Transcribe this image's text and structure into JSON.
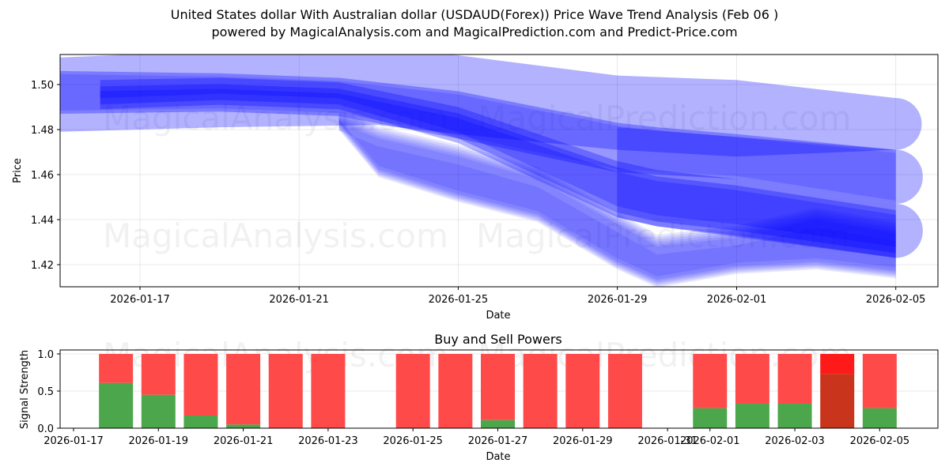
{
  "header": {
    "title": "United States dollar With Australian dollar (USDAUD(Forex)) Price Wave Trend Analysis (Feb 06 )",
    "subtitle": "powered by MagicalAnalysis.com and MagicalPrediction.com and Predict-Price.com"
  },
  "watermarks": [
    "MagicalAnalysis.com",
    "MagicalPrediction.com"
  ],
  "colors": {
    "band": "#0000ff",
    "buy": "#4ca64c",
    "sell": "#ff4a4a",
    "sell_strong": "#ff1a1a",
    "buy_dominant_dark": "#c8341c"
  },
  "chart_data": [
    {
      "type": "area",
      "title": "",
      "xlabel": "Date",
      "ylabel": "Price",
      "ylim": [
        1.41,
        1.513
      ],
      "xlim": [
        "2026-01-15",
        "2026-02-06"
      ],
      "grid": true,
      "yticks": [
        "1.42",
        "1.44",
        "1.46",
        "1.48",
        "1.50"
      ],
      "xticks": [
        "2026-01-17",
        "2026-01-21",
        "2026-01-25",
        "2026-01-29",
        "2026-02-01",
        "2026-02-05"
      ],
      "description": "Overlapping translucent blue wave bands showing price trend; narrow core band near 1.497 in mid-January, declining to approx. 1.42-1.44 by early February; wide projection bands with rounded ends at 1.483, 1.460, 1.436 on 2026-02-05",
      "series": [
        {
          "name": "wide-upper-band",
          "x": [
            "2026-01-15",
            "2026-01-19",
            "2026-01-23",
            "2026-01-25",
            "2026-01-29",
            "2026-02-01",
            "2026-02-05"
          ],
          "upper": [
            1.512,
            1.515,
            1.516,
            1.513,
            1.504,
            1.502,
            1.494
          ],
          "lower": [
            1.479,
            1.481,
            1.482,
            1.478,
            1.471,
            1.468,
            1.471
          ]
        },
        {
          "name": "mid-band",
          "x": [
            "2026-01-15",
            "2026-01-19",
            "2026-01-22",
            "2026-01-25",
            "2026-01-29",
            "2026-01-30",
            "2026-02-01",
            "2026-02-05"
          ],
          "upper": [
            1.506,
            1.505,
            1.503,
            1.497,
            1.483,
            1.481,
            1.478,
            1.471
          ],
          "lower": [
            1.487,
            1.488,
            1.486,
            1.476,
            1.461,
            1.46,
            1.458,
            1.447
          ]
        },
        {
          "name": "core-band",
          "x": [
            "2026-01-16",
            "2026-01-19",
            "2026-01-22",
            "2026-01-25",
            "2026-01-29",
            "2026-01-30",
            "2026-02-01",
            "2026-02-05"
          ],
          "upper": [
            1.502,
            1.503,
            1.501,
            1.49,
            1.466,
            1.462,
            1.458,
            1.447
          ],
          "lower": [
            1.489,
            1.491,
            1.489,
            1.474,
            1.441,
            1.437,
            1.433,
            1.423
          ]
        },
        {
          "name": "lower-wave-band",
          "x": [
            "2026-01-22",
            "2026-01-23",
            "2026-01-25",
            "2026-01-27",
            "2026-01-29",
            "2026-01-30",
            "2026-02-01",
            "2026-02-03",
            "2026-02-05"
          ],
          "upper": [
            1.483,
            1.476,
            1.468,
            1.458,
            1.438,
            1.428,
            1.432,
            1.44,
            1.434
          ],
          "lower": [
            1.482,
            1.461,
            1.45,
            1.441,
            1.42,
            1.412,
            1.418,
            1.42,
            1.416
          ]
        }
      ]
    },
    {
      "type": "bar",
      "title": "Buy and Sell Powers",
      "xlabel": "Date",
      "ylabel": "Signal Strength",
      "ylim": [
        0,
        1.05
      ],
      "yticks": [
        "0.0",
        "0.5",
        "1.0"
      ],
      "xticks": [
        "2026-01-17",
        "2026-01-19",
        "2026-01-21",
        "2026-01-23",
        "2026-01-25",
        "2026-01-27",
        "2026-01-29",
        "2026-01-31",
        "2026-02-01",
        "2026-02-03",
        "2026-02-05"
      ],
      "grid": true,
      "categories": [
        "2026-01-18",
        "2026-01-19",
        "2026-01-20",
        "2026-01-21",
        "2026-01-22",
        "2026-01-23",
        "2026-01-25",
        "2026-01-26",
        "2026-01-27",
        "2026-01-28",
        "2026-01-29",
        "2026-01-30",
        "2026-02-01",
        "2026-02-02",
        "2026-02-03",
        "2026-02-04",
        "2026-02-05"
      ],
      "series": [
        {
          "name": "Buy",
          "values": [
            0.61,
            0.45,
            0.17,
            0.05,
            0.0,
            0.0,
            0.0,
            0.0,
            0.11,
            0.0,
            0.0,
            0.0,
            0.27,
            0.33,
            0.33,
            0.73,
            0.27
          ]
        },
        {
          "name": "Sell",
          "values": [
            0.39,
            0.55,
            0.83,
            0.95,
            1.0,
            1.0,
            1.0,
            1.0,
            0.89,
            1.0,
            1.0,
            1.0,
            0.73,
            0.67,
            0.67,
            0.27,
            0.73
          ]
        }
      ],
      "highlight": {
        "date": "2026-02-04",
        "buy_color": "#c8341c",
        "sell_color": "#ff1a1a"
      }
    }
  ]
}
